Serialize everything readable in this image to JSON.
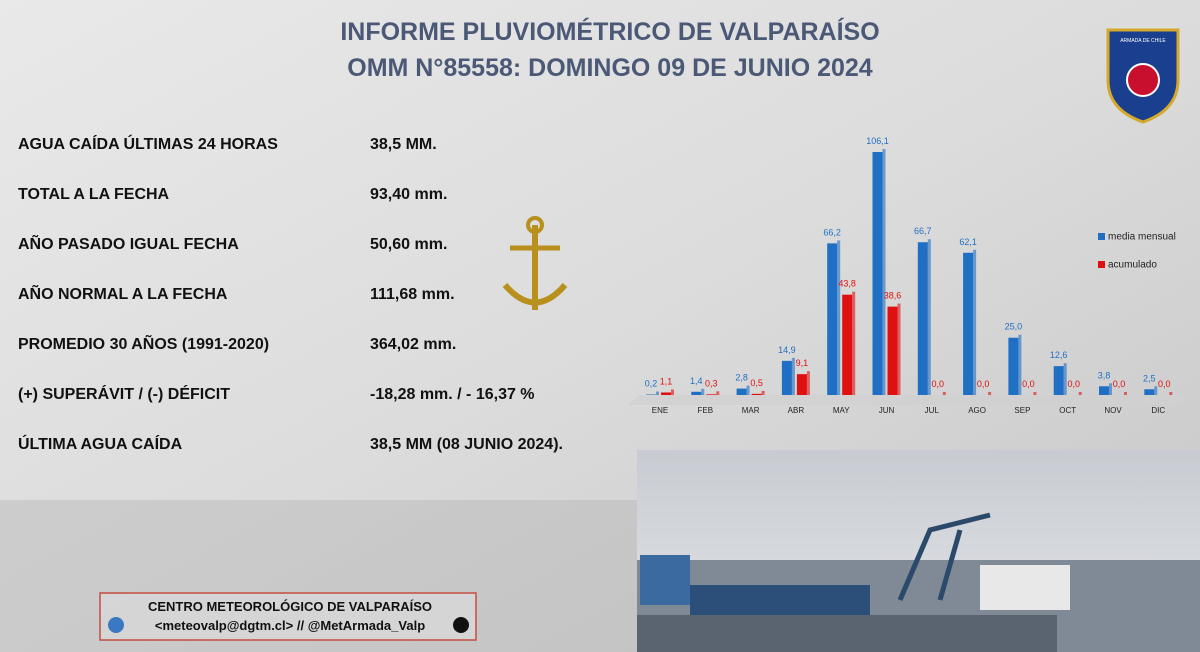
{
  "header": {
    "title": "INFORME PLUVIOMÉTRICO DE VALPARAÍSO",
    "subtitle": "OMM N°85558: DOMINGO 09 DE JUNIO 2024",
    "logo_text": "ARMADA DE CHILE"
  },
  "stats": [
    {
      "label": "AGUA CAÍDA ÚLTIMAS 24 HORAS",
      "value": "38,5 MM."
    },
    {
      "label": "TOTAL A LA FECHA",
      "value": "93,40 mm."
    },
    {
      "label": "AÑO PASADO IGUAL FECHA",
      "value": "50,60 mm."
    },
    {
      "label": "AÑO NORMAL A LA FECHA",
      "value": "111,68 mm."
    },
    {
      "label": "PROMEDIO 30 AÑOS (1991-2020)",
      "value": "364,02 mm."
    },
    {
      "label": "(+) SUPERÁVIT / (-) DÉFICIT",
      "value": "-18,28 mm.  / - 16,37 %"
    },
    {
      "label": "ÚLTIMA AGUA CAÍDA",
      "value": "38,5 MM (08 JUNIO 2024)."
    }
  ],
  "chart_data": {
    "type": "bar",
    "categories": [
      "ENE",
      "FEB",
      "MAR",
      "ABR",
      "MAY",
      "JUN",
      "JUL",
      "AGO",
      "SEP",
      "OCT",
      "NOV",
      "DIC"
    ],
    "series": [
      {
        "name": "media mensual",
        "color": "#1f6fc4",
        "values": [
          0.2,
          1.4,
          2.8,
          14.9,
          66.2,
          106.1,
          66.7,
          62.1,
          25.0,
          12.6,
          3.8,
          2.5
        ],
        "value_labels": [
          "0,2",
          "1,4",
          "2,8",
          "14,9",
          "66,2",
          "106,1",
          "66,7",
          "62,1",
          "25,0",
          "12,6",
          "3,8",
          "2,5"
        ]
      },
      {
        "name": "acumulado",
        "color": "#e01010",
        "values": [
          1.1,
          0.3,
          0.5,
          9.1,
          43.8,
          38.6,
          0.0,
          0.0,
          0.0,
          0.0,
          0.0,
          0.0
        ],
        "value_labels": [
          "1,1",
          "0,3",
          "0,5",
          "9,1",
          "43,8",
          "38,6",
          "0,0",
          "0,0",
          "0,0",
          "0,0",
          "0,0",
          "0,0"
        ]
      }
    ],
    "legend": "right"
  },
  "footer": {
    "line1": "CENTRO METEOROLÓGICO DE VALPARAÍSO",
    "line2": "<meteovalp@dgtm.cl> // @MetArmada_Valp"
  }
}
